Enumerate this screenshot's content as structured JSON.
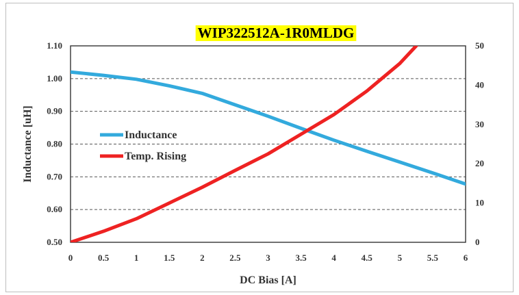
{
  "chart_data": {
    "type": "line",
    "title": "WIP322512A-1R0MLDG",
    "title_highlight": "#ffff00",
    "xlabel": "DC Bias [A]",
    "ylabel": "Inductance [uH]",
    "xlim": [
      0,
      6
    ],
    "ylim": [
      0.5,
      1.1
    ],
    "y2lim": [
      0,
      50
    ],
    "x_ticks": [
      "0",
      "0.5",
      "1",
      "1.5",
      "2",
      "2.5",
      "3",
      "3.5",
      "4",
      "4.5",
      "5",
      "5.5",
      "6"
    ],
    "y_ticks": [
      "0.50",
      "0.60",
      "0.70",
      "0.80",
      "0.90",
      "1.00",
      "1.10"
    ],
    "y2_ticks": [
      "0",
      "10",
      "20",
      "30",
      "40",
      "50"
    ],
    "grid": "horizontal dashed",
    "legend_position": "left-middle",
    "series": [
      {
        "name": "Inductance",
        "axis": "left",
        "color": "#33aadd",
        "x": [
          0,
          0.5,
          1,
          1.5,
          2,
          2.5,
          3,
          3.5,
          4,
          4.5,
          5,
          5.5,
          6
        ],
        "y": [
          1.02,
          1.01,
          0.998,
          0.978,
          0.955,
          0.92,
          0.885,
          0.848,
          0.812,
          0.778,
          0.745,
          0.712,
          0.678
        ]
      },
      {
        "name": "Temp. Rising",
        "axis": "right",
        "color": "#ee2222",
        "x": [
          0,
          0.5,
          1,
          1.5,
          2,
          2.5,
          3,
          3.5,
          4,
          4.5,
          5,
          5.25
        ],
        "y": [
          0,
          2.8,
          6,
          10,
          14,
          18.3,
          22.5,
          27.5,
          32.5,
          38.5,
          45.5,
          50
        ]
      }
    ]
  }
}
